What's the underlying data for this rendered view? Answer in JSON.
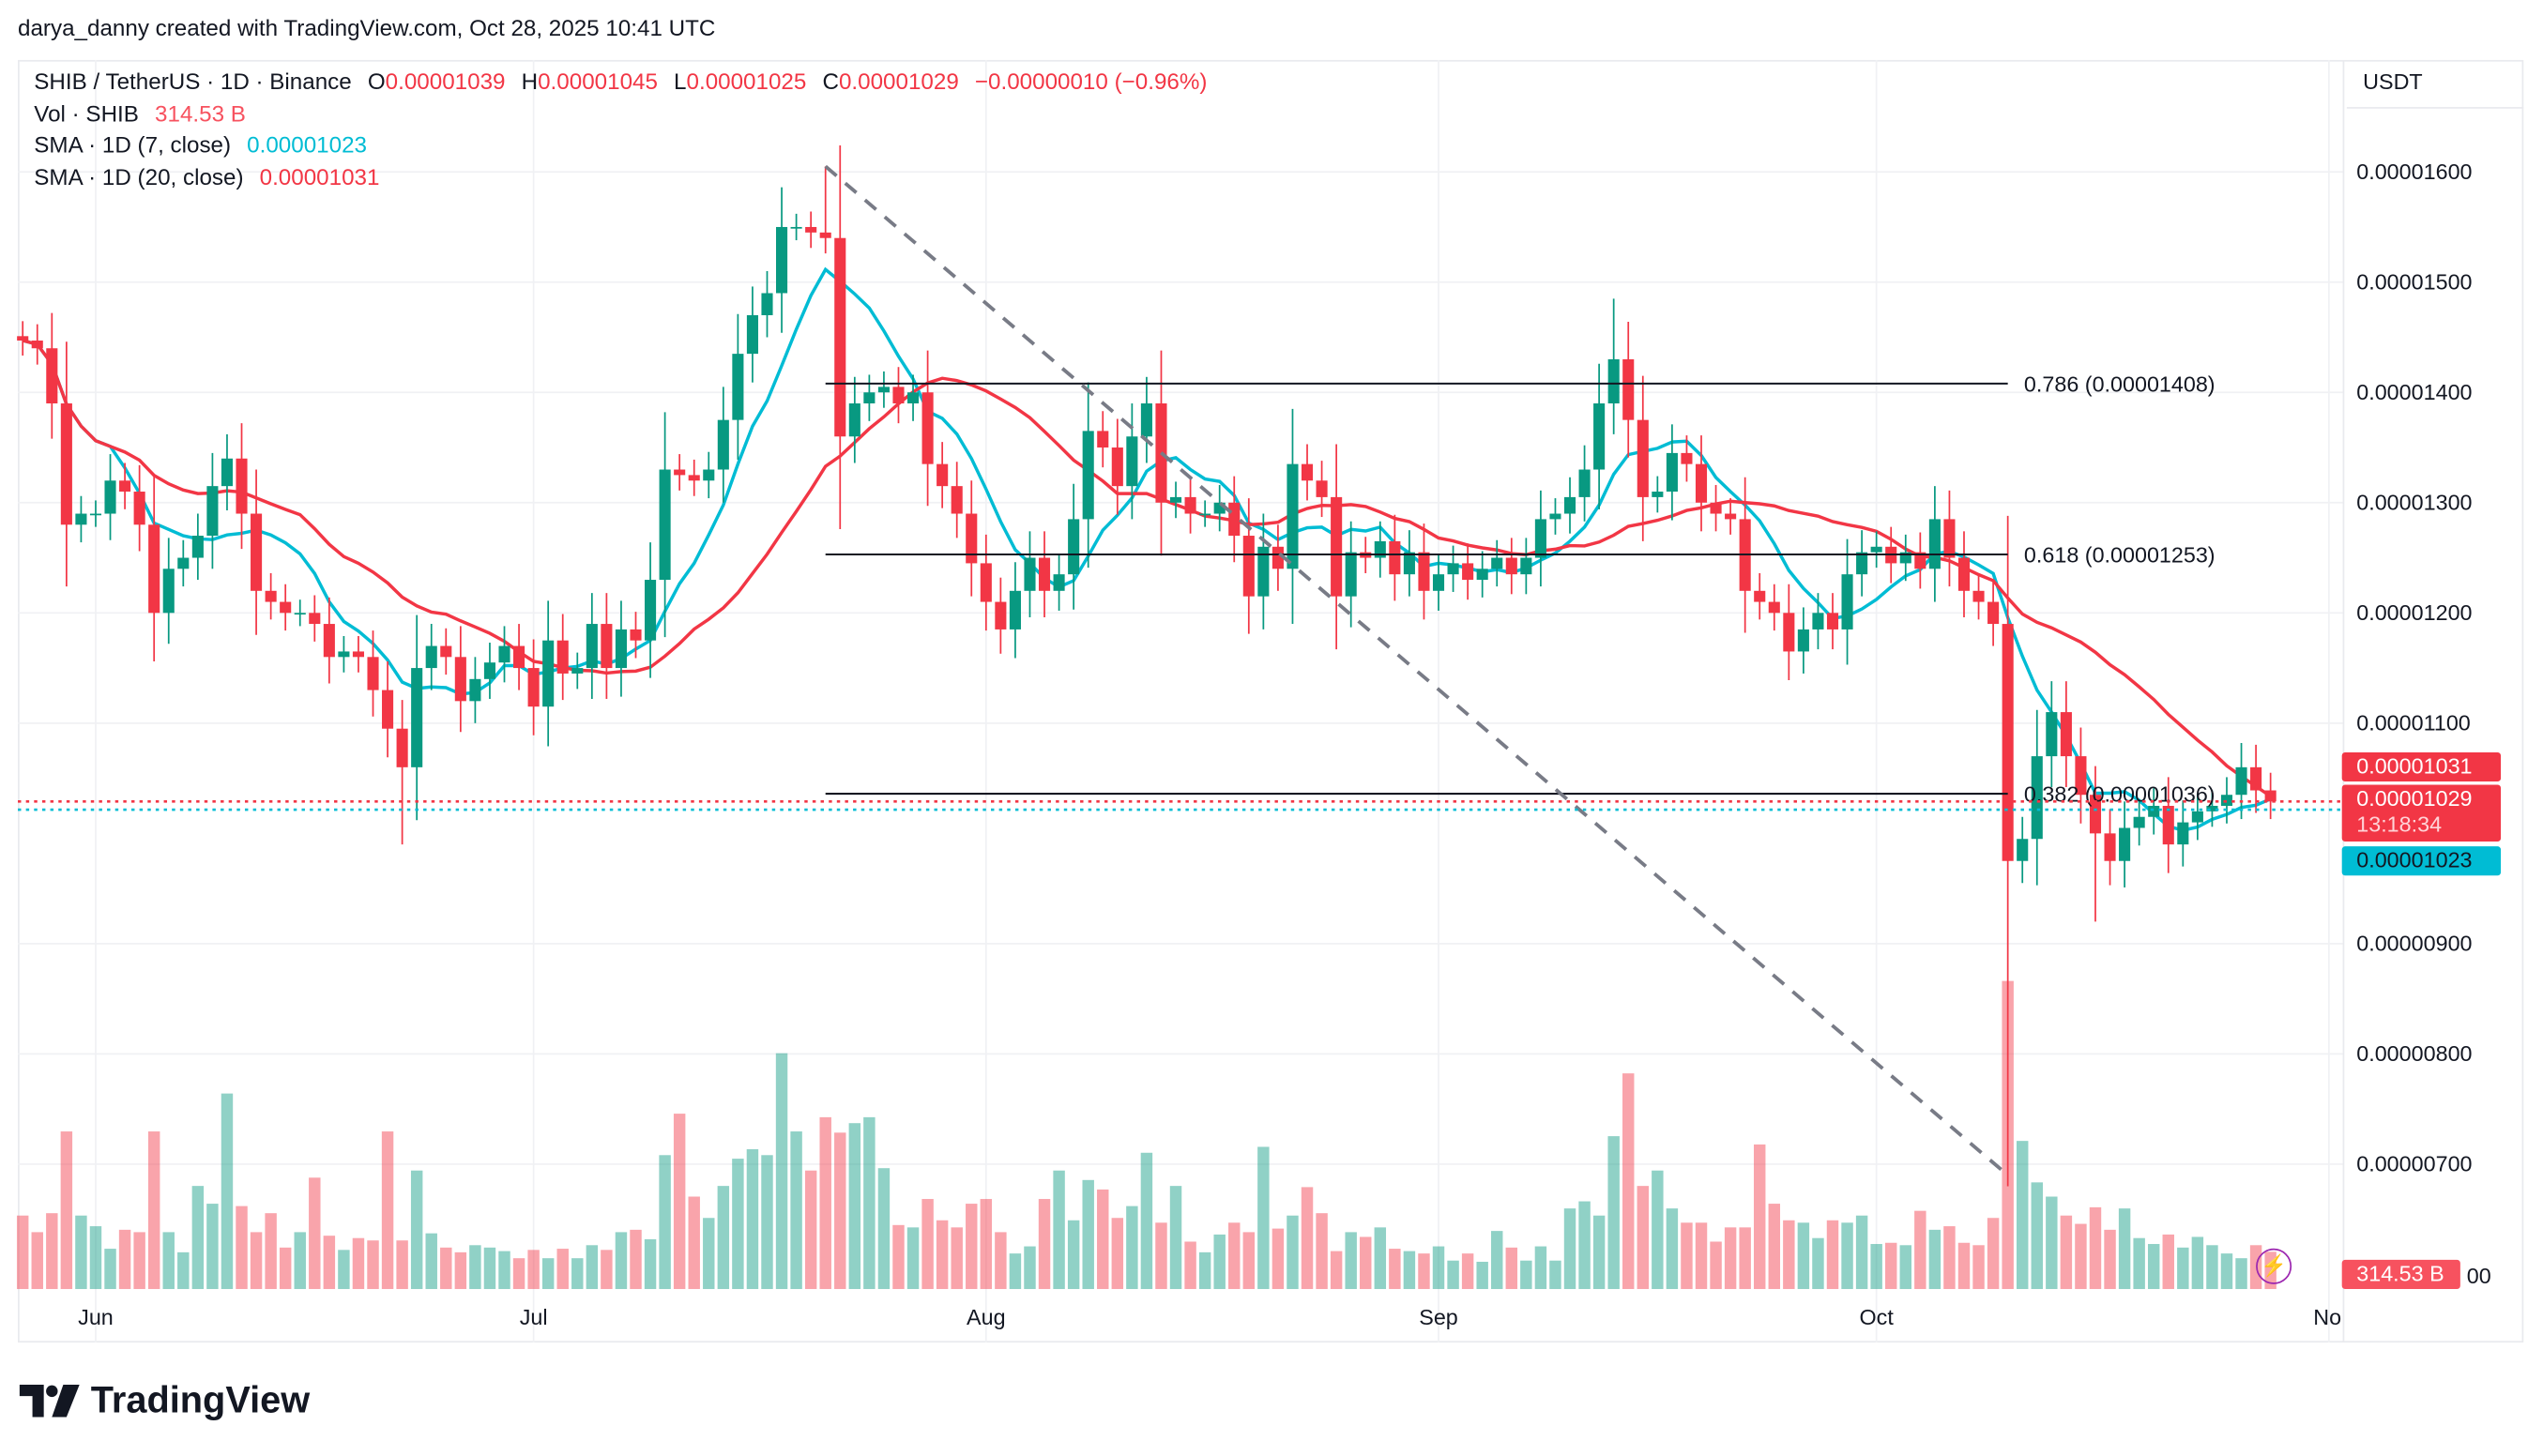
{
  "attribution": "darya_danny created with TradingView.com, Oct 28, 2025 10:41 UTC",
  "legend": {
    "symbol": "SHIB / TetherUS · 1D · Binance",
    "o_label": "O",
    "o": "0.00001039",
    "h_label": "H",
    "h": "0.00001045",
    "l_label": "L",
    "l": "0.00001025",
    "c_label": "C",
    "c": "0.00001029",
    "change": "−0.00000010 (−0.96%)",
    "vol_label": "Vol · SHIB",
    "vol": "314.53 B",
    "sma7_label": "SMA · 1D (7, close)",
    "sma7": "0.00001023",
    "sma20_label": "SMA · 1D (20, close)",
    "sma20": "0.00001031"
  },
  "currency": "USDT",
  "price_tags": {
    "sma20": "0.00001031",
    "last": "0.00001029",
    "countdown": "13:18:34",
    "sma7": "0.00001023",
    "volume": "314.53 B",
    "volume_axis_partial": "00"
  },
  "logo_text": "TradingView",
  "colors": {
    "up": "#089981",
    "down": "#f23645",
    "sma7": "#00bcd4",
    "sma20": "#f23645",
    "fib": "#131722",
    "trendline": "#787b86"
  },
  "chart_data": {
    "type": "candlestick",
    "title": "SHIB / TetherUS · 1D · Binance",
    "first_date": "2025-05-27",
    "last_date": "2025-10-28",
    "ylim": [
      6.2e-06,
      1.7e-05
    ],
    "y_ticks": [
      "0.00001600",
      "0.00001500",
      "0.00001400",
      "0.00001300",
      "0.00001200",
      "0.00001100",
      "0.00000900",
      "0.00000800",
      "0.00000700"
    ],
    "x_ticks": [
      {
        "label": "Jun",
        "date": "2025-06-01"
      },
      {
        "label": "Jul",
        "date": "2025-07-01"
      },
      {
        "label": "Aug",
        "date": "2025-08-01"
      },
      {
        "label": "Sep",
        "date": "2025-09-01"
      },
      {
        "label": "Oct",
        "date": "2025-10-01"
      },
      {
        "label": "No",
        "date": "2025-11-01"
      }
    ],
    "grid": true,
    "close": [
      1.447e-05,
      1.44e-05,
      1.39e-05,
      1.28e-05,
      1.29e-05,
      1.29e-05,
      1.32e-05,
      1.31e-05,
      1.28e-05,
      1.2e-05,
      1.24e-05,
      1.25e-05,
      1.27e-05,
      1.315e-05,
      1.34e-05,
      1.29e-05,
      1.22e-05,
      1.21e-05,
      1.2e-05,
      1.2e-05,
      1.19e-05,
      1.16e-05,
      1.165e-05,
      1.16e-05,
      1.13e-05,
      1.095e-05,
      1.06e-05,
      1.15e-05,
      1.17e-05,
      1.16e-05,
      1.12e-05,
      1.14e-05,
      1.155e-05,
      1.17e-05,
      1.15e-05,
      1.115e-05,
      1.175e-05,
      1.145e-05,
      1.15e-05,
      1.19e-05,
      1.15e-05,
      1.185e-05,
      1.175e-05,
      1.23e-05,
      1.33e-05,
      1.325e-05,
      1.32e-05,
      1.33e-05,
      1.375e-05,
      1.435e-05,
      1.47e-05,
      1.49e-05,
      1.55e-05,
      1.55e-05,
      1.545e-05,
      1.54e-05,
      1.36e-05,
      1.39e-05,
      1.4e-05,
      1.405e-05,
      1.39e-05,
      1.4e-05,
      1.335e-05,
      1.315e-05,
      1.29e-05,
      1.245e-05,
      1.21e-05,
      1.185e-05,
      1.22e-05,
      1.25e-05,
      1.22e-05,
      1.235e-05,
      1.285e-05,
      1.365e-05,
      1.35e-05,
      1.315e-05,
      1.36e-05,
      1.39e-05,
      1.3e-05,
      1.305e-05,
      1.29e-05,
      1.29e-05,
      1.3e-05,
      1.27e-05,
      1.215e-05,
      1.26e-05,
      1.24e-05,
      1.335e-05,
      1.32e-05,
      1.305e-05,
      1.215e-05,
      1.255e-05,
      1.25e-05,
      1.265e-05,
      1.235e-05,
      1.255e-05,
      1.22e-05,
      1.235e-05,
      1.245e-05,
      1.23e-05,
      1.24e-05,
      1.25e-05,
      1.235e-05,
      1.25e-05,
      1.285e-05,
      1.29e-05,
      1.305e-05,
      1.33e-05,
      1.39e-05,
      1.43e-05,
      1.375e-05,
      1.305e-05,
      1.31e-05,
      1.345e-05,
      1.335e-05,
      1.3e-05,
      1.29e-05,
      1.285e-05,
      1.22e-05,
      1.21e-05,
      1.2e-05,
      1.165e-05,
      1.185e-05,
      1.2e-05,
      1.185e-05,
      1.235e-05,
      1.255e-05,
      1.26e-05,
      1.245e-05,
      1.255e-05,
      1.24e-05,
      1.285e-05,
      1.25e-05,
      1.22e-05,
      1.21e-05,
      1.19e-05,
      9.75e-06,
      9.95e-06,
      1.07e-05,
      1.11e-05,
      1.07e-05,
      1.035e-05,
      1e-05,
      9.75e-06,
      1.005e-05,
      1.015e-05,
      1.025e-05,
      9.9e-06,
      1.01e-05,
      1.02e-05,
      1.025e-05,
      1.035e-05,
      1.06e-05,
      1.039e-05,
      1.029e-05
    ],
    "notable_wicks": [
      {
        "date": "2025-07-21",
        "high": 1.605e-05
      },
      {
        "date": "2025-09-13",
        "high": 1.485e-05
      },
      {
        "date": "2025-06-22",
        "low": 9.9e-06
      },
      {
        "date": "2025-10-10",
        "low": 6.8e-06
      },
      {
        "date": "2025-10-16",
        "low": 9.2e-06
      }
    ],
    "volume_unit": "B",
    "volume": [
      620,
      480,
      640,
      1330,
      620,
      530,
      340,
      500,
      480,
      1330,
      480,
      310,
      870,
      720,
      1650,
      700,
      480,
      640,
      350,
      480,
      940,
      450,
      330,
      430,
      410,
      1330,
      410,
      1000,
      470,
      350,
      310,
      370,
      350,
      320,
      260,
      330,
      260,
      340,
      260,
      370,
      330,
      480,
      500,
      420,
      1130,
      1480,
      780,
      600,
      870,
      1100,
      1180,
      1130,
      1990,
      1330,
      1000,
      1450,
      1320,
      1400,
      1450,
      1020,
      540,
      520,
      760,
      580,
      520,
      720,
      760,
      480,
      300,
      360,
      760,
      1000,
      580,
      920,
      840,
      600,
      700,
      1150,
      560,
      870,
      400,
      310,
      460,
      560,
      480,
      1200,
      510,
      620,
      860,
      640,
      320,
      480,
      440,
      520,
      340,
      320,
      300,
      360,
      240,
      300,
      230,
      490,
      350,
      240,
      360,
      240,
      680,
      740,
      620,
      1290,
      1820,
      870,
      1000,
      680,
      560,
      560,
      400,
      520,
      520,
      1220,
      720,
      580,
      560,
      430,
      580,
      560,
      620,
      380,
      390,
      370,
      660,
      500,
      530,
      390,
      370,
      600,
      2600,
      1250,
      900,
      780,
      620,
      550,
      690,
      500,
      680,
      430,
      380,
      460,
      350,
      440,
      370,
      300,
      260,
      370,
      314.53
    ],
    "indicators": [
      {
        "name": "SMA · 1D (7, close)",
        "period": 7,
        "color": "#00bcd4",
        "last": 1.023e-05
      },
      {
        "name": "SMA · 1D (20, close)",
        "period": 20,
        "color": "#f23645",
        "last": 1.031e-05
      }
    ],
    "fib_levels": [
      {
        "ratio": "0.786",
        "price": 1.408e-05,
        "label": "0.786 (0.00001408)"
      },
      {
        "ratio": "0.618",
        "price": 1.253e-05,
        "label": "0.618 (0.00001253)"
      },
      {
        "ratio": "0.382",
        "price": 1.036e-05,
        "label": "0.382 (0.00001036)"
      }
    ],
    "fib_start_date": "2025-07-21",
    "fib_end_date": "2025-10-10",
    "trendline": {
      "from": {
        "date": "2025-07-21",
        "price": 1.605e-05
      },
      "to": {
        "date": "2025-10-10",
        "price": 6.9e-06
      },
      "style": "dashed"
    }
  }
}
